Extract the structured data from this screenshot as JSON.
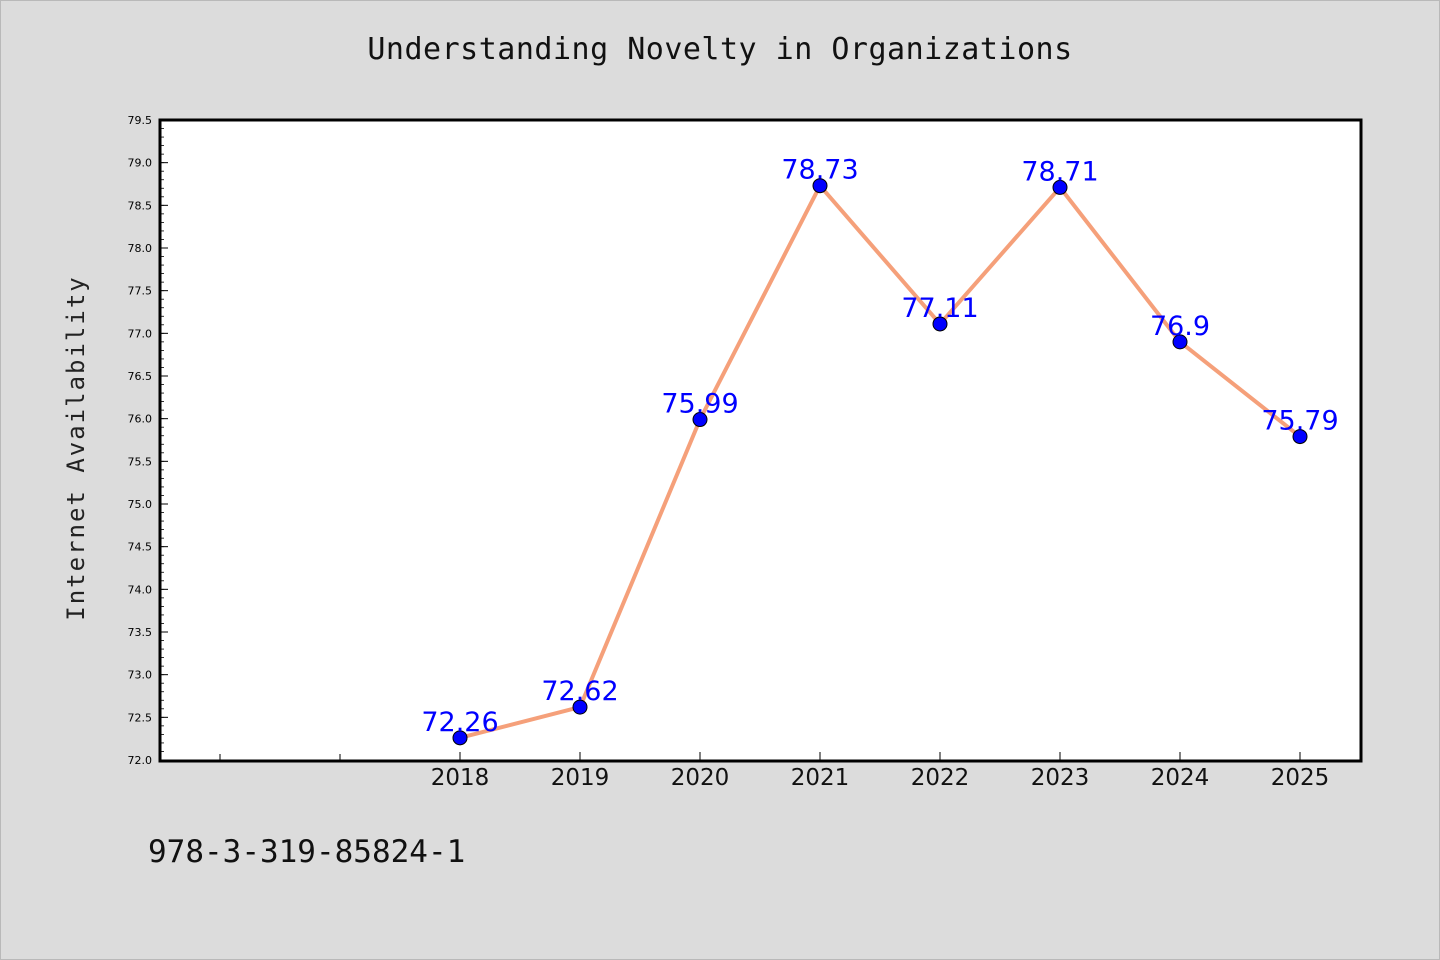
{
  "chart_data": {
    "type": "line",
    "title": "Understanding Novelty in Organizations",
    "xlabel": "",
    "ylabel": "Internet Availability",
    "categories": [
      "2018",
      "2019",
      "2020",
      "2021",
      "2022",
      "2023",
      "2024",
      "2025"
    ],
    "values": [
      72.26,
      72.62,
      75.99,
      78.73,
      77.11,
      78.71,
      76.9,
      75.79
    ],
    "data_labels": [
      "72.26",
      "72.62",
      "75.99",
      "78.73",
      "77.11",
      "78.71",
      "76.9",
      "75.79"
    ],
    "ylim": [
      72.0,
      79.5
    ],
    "y_ticks": [
      "72.0",
      "72.5",
      "73.0",
      "73.5",
      "74.0",
      "74.5",
      "75.0",
      "75.5",
      "76.0",
      "76.5",
      "77.0",
      "77.5",
      "78.0",
      "78.5",
      "79.0",
      "79.5"
    ],
    "grid": false,
    "legend": "none",
    "line_color": "#f5a07a",
    "marker_color": "#0000ff",
    "label_color": "#0000ff"
  },
  "footer": {
    "isbn": "978-3-319-85824-1"
  }
}
